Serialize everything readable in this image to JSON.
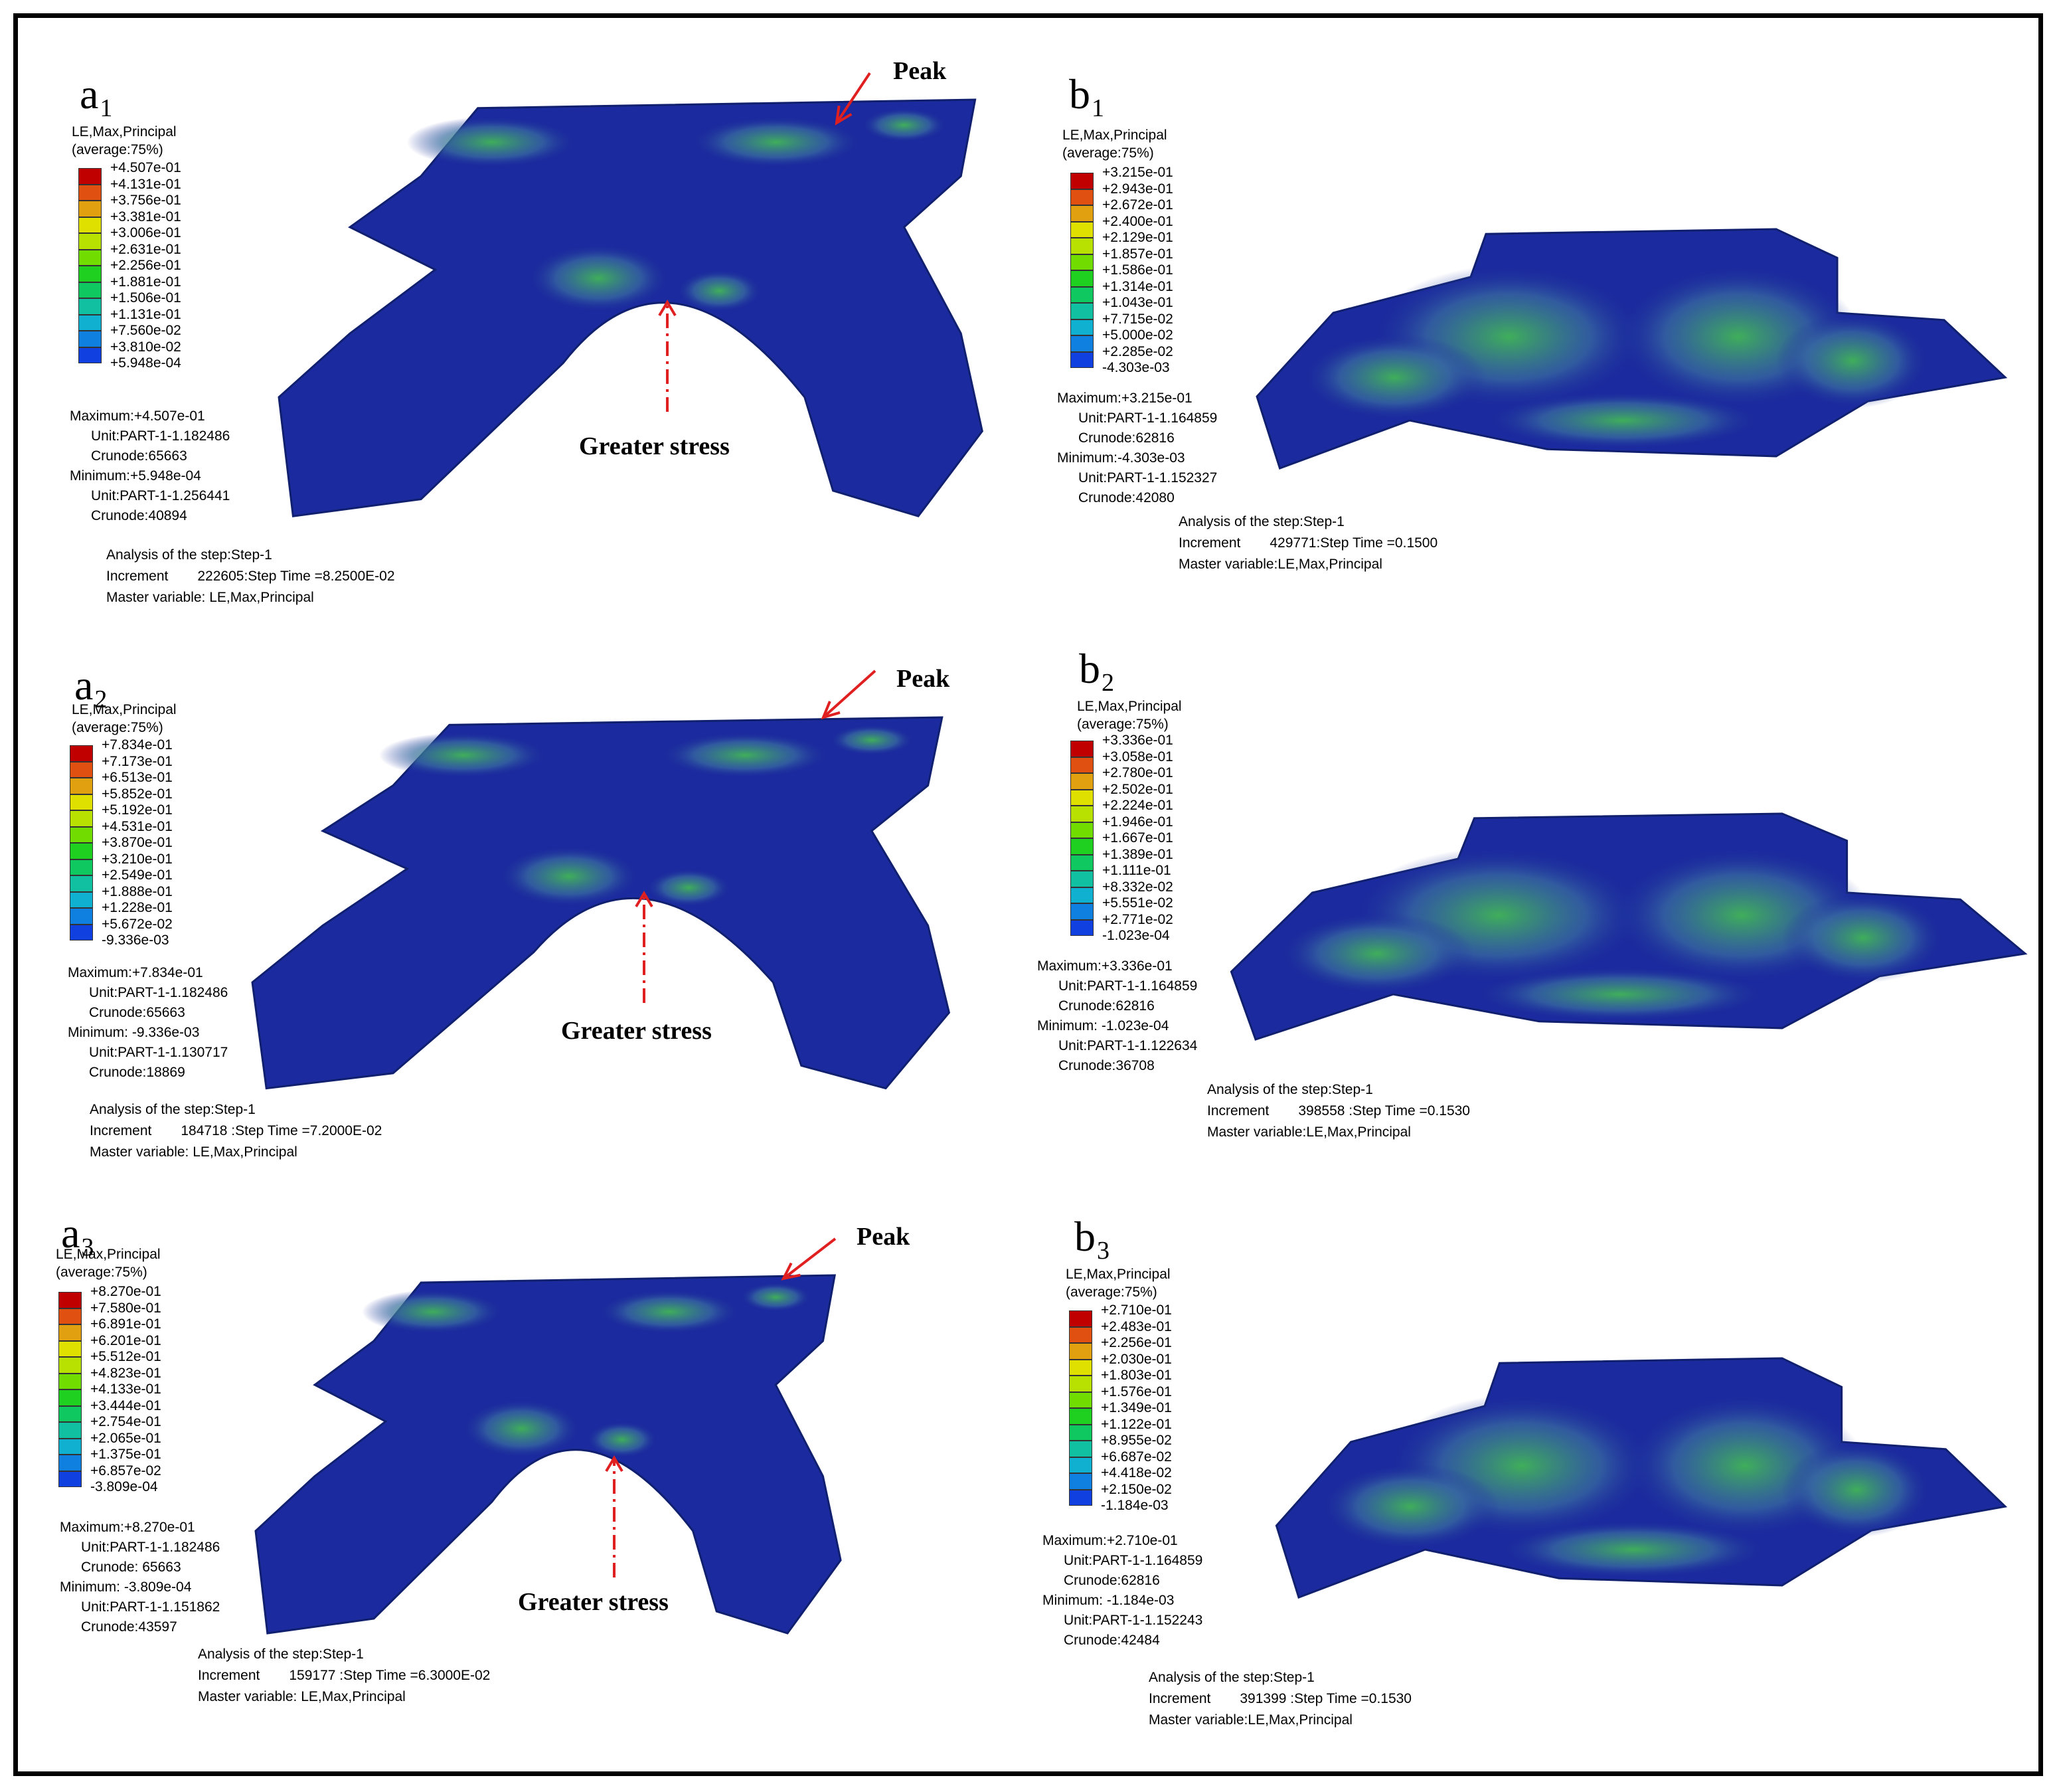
{
  "colors": {
    "border": "#000000",
    "model_base": "#1b2a9e",
    "model_mid": "#3a6fa0",
    "model_hot": "#3fae5a",
    "arrow": "#e02020",
    "legend_scale": [
      "#c00000",
      "#e05010",
      "#e0a010",
      "#e0e000",
      "#b8e000",
      "#70dc00",
      "#20d020",
      "#10c860",
      "#10c0a0",
      "#10b0d0",
      "#1080e0",
      "#1040e0",
      "#1010e0"
    ]
  },
  "panels": [
    {
      "id": "a1",
      "label_letter": "a",
      "label_num": "1",
      "legend_title_1": "LE,Max,Principal",
      "legend_title_2": "(average:75%)",
      "legend_values": [
        "+4.507e-01",
        "+4.131e-01",
        "+3.756e-01",
        "+3.381e-01",
        "+3.006e-01",
        "+2.631e-01",
        "+2.256e-01",
        "+1.881e-01",
        "+1.506e-01",
        "+1.131e-01",
        "+7.560e-02",
        "+3.810e-02",
        "+5.948e-04"
      ],
      "maximum": "Maximum:+4.507e-01",
      "max_unit": "Unit:PART-1-1.182486",
      "max_crunode": "Crunode:65663",
      "minimum": "Minimum:+5.948e-04",
      "min_unit": "Unit:PART-1-1.256441",
      "min_crunode": "Crunode:40894",
      "step_line": "Analysis of the step:Step-1",
      "increment_label": "Increment",
      "increment_value": "222605:Step Time =8.2500E-02",
      "master_line": "Master variable: LE,Max,Principal",
      "peak_label": "Peak",
      "stress_label": "Greater stress"
    },
    {
      "id": "b1",
      "label_letter": "b",
      "label_num": "1",
      "legend_title_1": "LE,Max,Principal",
      "legend_title_2": "(average:75%)",
      "legend_values": [
        "+3.215e-01",
        "+2.943e-01",
        "+2.672e-01",
        "+2.400e-01",
        "+2.129e-01",
        "+1.857e-01",
        "+1.586e-01",
        "+1.314e-01",
        "+1.043e-01",
        "+7.715e-02",
        "+5.000e-02",
        "+2.285e-02",
        "-4.303e-03"
      ],
      "maximum": "Maximum:+3.215e-01",
      "max_unit": "Unit:PART-1-1.164859",
      "max_crunode": "Crunode:62816",
      "minimum": "Minimum:-4.303e-03",
      "min_unit": "Unit:PART-1-1.152327",
      "min_crunode": "Crunode:42080",
      "step_line": "Analysis of the step:Step-1",
      "increment_label": "Increment",
      "increment_value": "429771:Step Time =0.1500",
      "master_line": "Master variable:LE,Max,Principal"
    },
    {
      "id": "a2",
      "label_letter": "a",
      "label_num": "2",
      "legend_title_1": "LE,Max,Principal",
      "legend_title_2": "(average:75%)",
      "legend_values": [
        "+7.834e-01",
        "+7.173e-01",
        "+6.513e-01",
        "+5.852e-01",
        "+5.192e-01",
        "+4.531e-01",
        "+3.870e-01",
        "+3.210e-01",
        "+2.549e-01",
        "+1.888e-01",
        "+1.228e-01",
        "+5.672e-02",
        "-9.336e-03"
      ],
      "maximum": "Maximum:+7.834e-01",
      "max_unit": "Unit:PART-1-1.182486",
      "max_crunode": "Crunode:65663",
      "minimum": "Minimum: -9.336e-03",
      "min_unit": "Unit:PART-1-1.130717",
      "min_crunode": "Crunode:18869",
      "step_line": "Analysis of the step:Step-1",
      "increment_label": "Increment",
      "increment_value": "184718 :Step Time =7.2000E-02",
      "master_line": "Master variable: LE,Max,Principal",
      "peak_label": "Peak",
      "stress_label": "Greater stress"
    },
    {
      "id": "b2",
      "label_letter": "b",
      "label_num": "2",
      "legend_title_1": "LE,Max,Principal",
      "legend_title_2": "(average:75%)",
      "legend_values": [
        "+3.336e-01",
        "+3.058e-01",
        "+2.780e-01",
        "+2.502e-01",
        "+2.224e-01",
        "+1.946e-01",
        "+1.667e-01",
        "+1.389e-01",
        "+1.111e-01",
        "+8.332e-02",
        "+5.551e-02",
        "+2.771e-02",
        "-1.023e-04"
      ],
      "maximum": "Maximum:+3.336e-01",
      "max_unit": "Unit:PART-1-1.164859",
      "max_crunode": "Crunode:62816",
      "minimum": "Minimum: -1.023e-04",
      "min_unit": "Unit:PART-1-1.122634",
      "min_crunode": "Crunode:36708",
      "step_line": "Analysis of the step:Step-1",
      "increment_label": "Increment",
      "increment_value": "398558 :Step Time =0.1530",
      "master_line": "Master variable:LE,Max,Principal"
    },
    {
      "id": "a3",
      "label_letter": "a",
      "label_num": "3",
      "legend_title_1": "LE,Max,Principal",
      "legend_title_2": "(average:75%)",
      "legend_values": [
        "+8.270e-01",
        "+7.580e-01",
        "+6.891e-01",
        "+6.201e-01",
        "+5.512e-01",
        "+4.823e-01",
        "+4.133e-01",
        "+3.444e-01",
        "+2.754e-01",
        "+2.065e-01",
        "+1.375e-01",
        "+6.857e-02",
        "-3.809e-04"
      ],
      "maximum": "Maximum:+8.270e-01",
      "max_unit": "Unit:PART-1-1.182486",
      "max_crunode": "Crunode: 65663",
      "minimum": "Minimum: -3.809e-04",
      "min_unit": "Unit:PART-1-1.151862",
      "min_crunode": "Crunode:43597",
      "step_line": "Analysis of the step:Step-1",
      "increment_label": "Increment",
      "increment_value": "159177 :Step Time =6.3000E-02",
      "master_line": "Master variable: LE,Max,Principal",
      "peak_label": "Peak",
      "stress_label": "Greater stress"
    },
    {
      "id": "b3",
      "label_letter": "b",
      "label_num": "3",
      "legend_title_1": "LE,Max,Principal",
      "legend_title_2": "(average:75%)",
      "legend_values": [
        "+2.710e-01",
        "+2.483e-01",
        "+2.256e-01",
        "+2.030e-01",
        "+1.803e-01",
        "+1.576e-01",
        "+1.349e-01",
        "+1.122e-01",
        "+8.955e-02",
        "+6.687e-02",
        "+4.418e-02",
        "+2.150e-02",
        "-1.184e-03"
      ],
      "maximum": "Maximum:+2.710e-01",
      "max_unit": "Unit:PART-1-1.164859",
      "max_crunode": "Crunode:62816",
      "minimum": "Minimum: -1.184e-03",
      "min_unit": "Unit:PART-1-1.152243",
      "min_crunode": "Crunode:42484",
      "step_line": "Analysis of the step:Step-1",
      "increment_label": "Increment",
      "increment_value": "391399 :Step Time =0.1530",
      "master_line": "Master variable:LE,Max,Principal"
    }
  ]
}
